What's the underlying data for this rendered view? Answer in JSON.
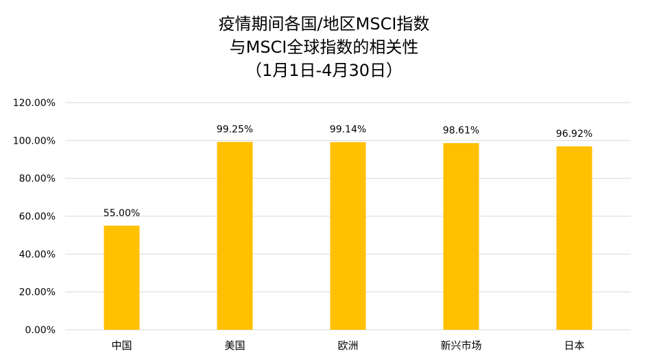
{
  "chart_data": {
    "type": "bar",
    "title_lines": [
      "疫情期间各国/地区MSCI指数",
      "与MSCI全球指数的相关性",
      "（1月1日-4月30日）"
    ],
    "categories": [
      "中国",
      "美国",
      "欧洲",
      "新兴市场",
      "日本"
    ],
    "values": [
      55.0,
      99.25,
      99.14,
      98.61,
      96.92
    ],
    "data_labels": [
      "55.00%",
      "99.25%",
      "99.14%",
      "98.61%",
      "96.92%"
    ],
    "y_ticks": [
      0,
      20,
      40,
      60,
      80,
      100,
      120
    ],
    "y_tick_labels": [
      "0.00%",
      "20.00%",
      "40.00%",
      "60.00%",
      "80.00%",
      "100.00%",
      "120.00%"
    ],
    "ylim": [
      0,
      120
    ],
    "grid": true,
    "legend": "none",
    "bar_color": "#FFC000",
    "grid_color": "#D9D9D9"
  }
}
